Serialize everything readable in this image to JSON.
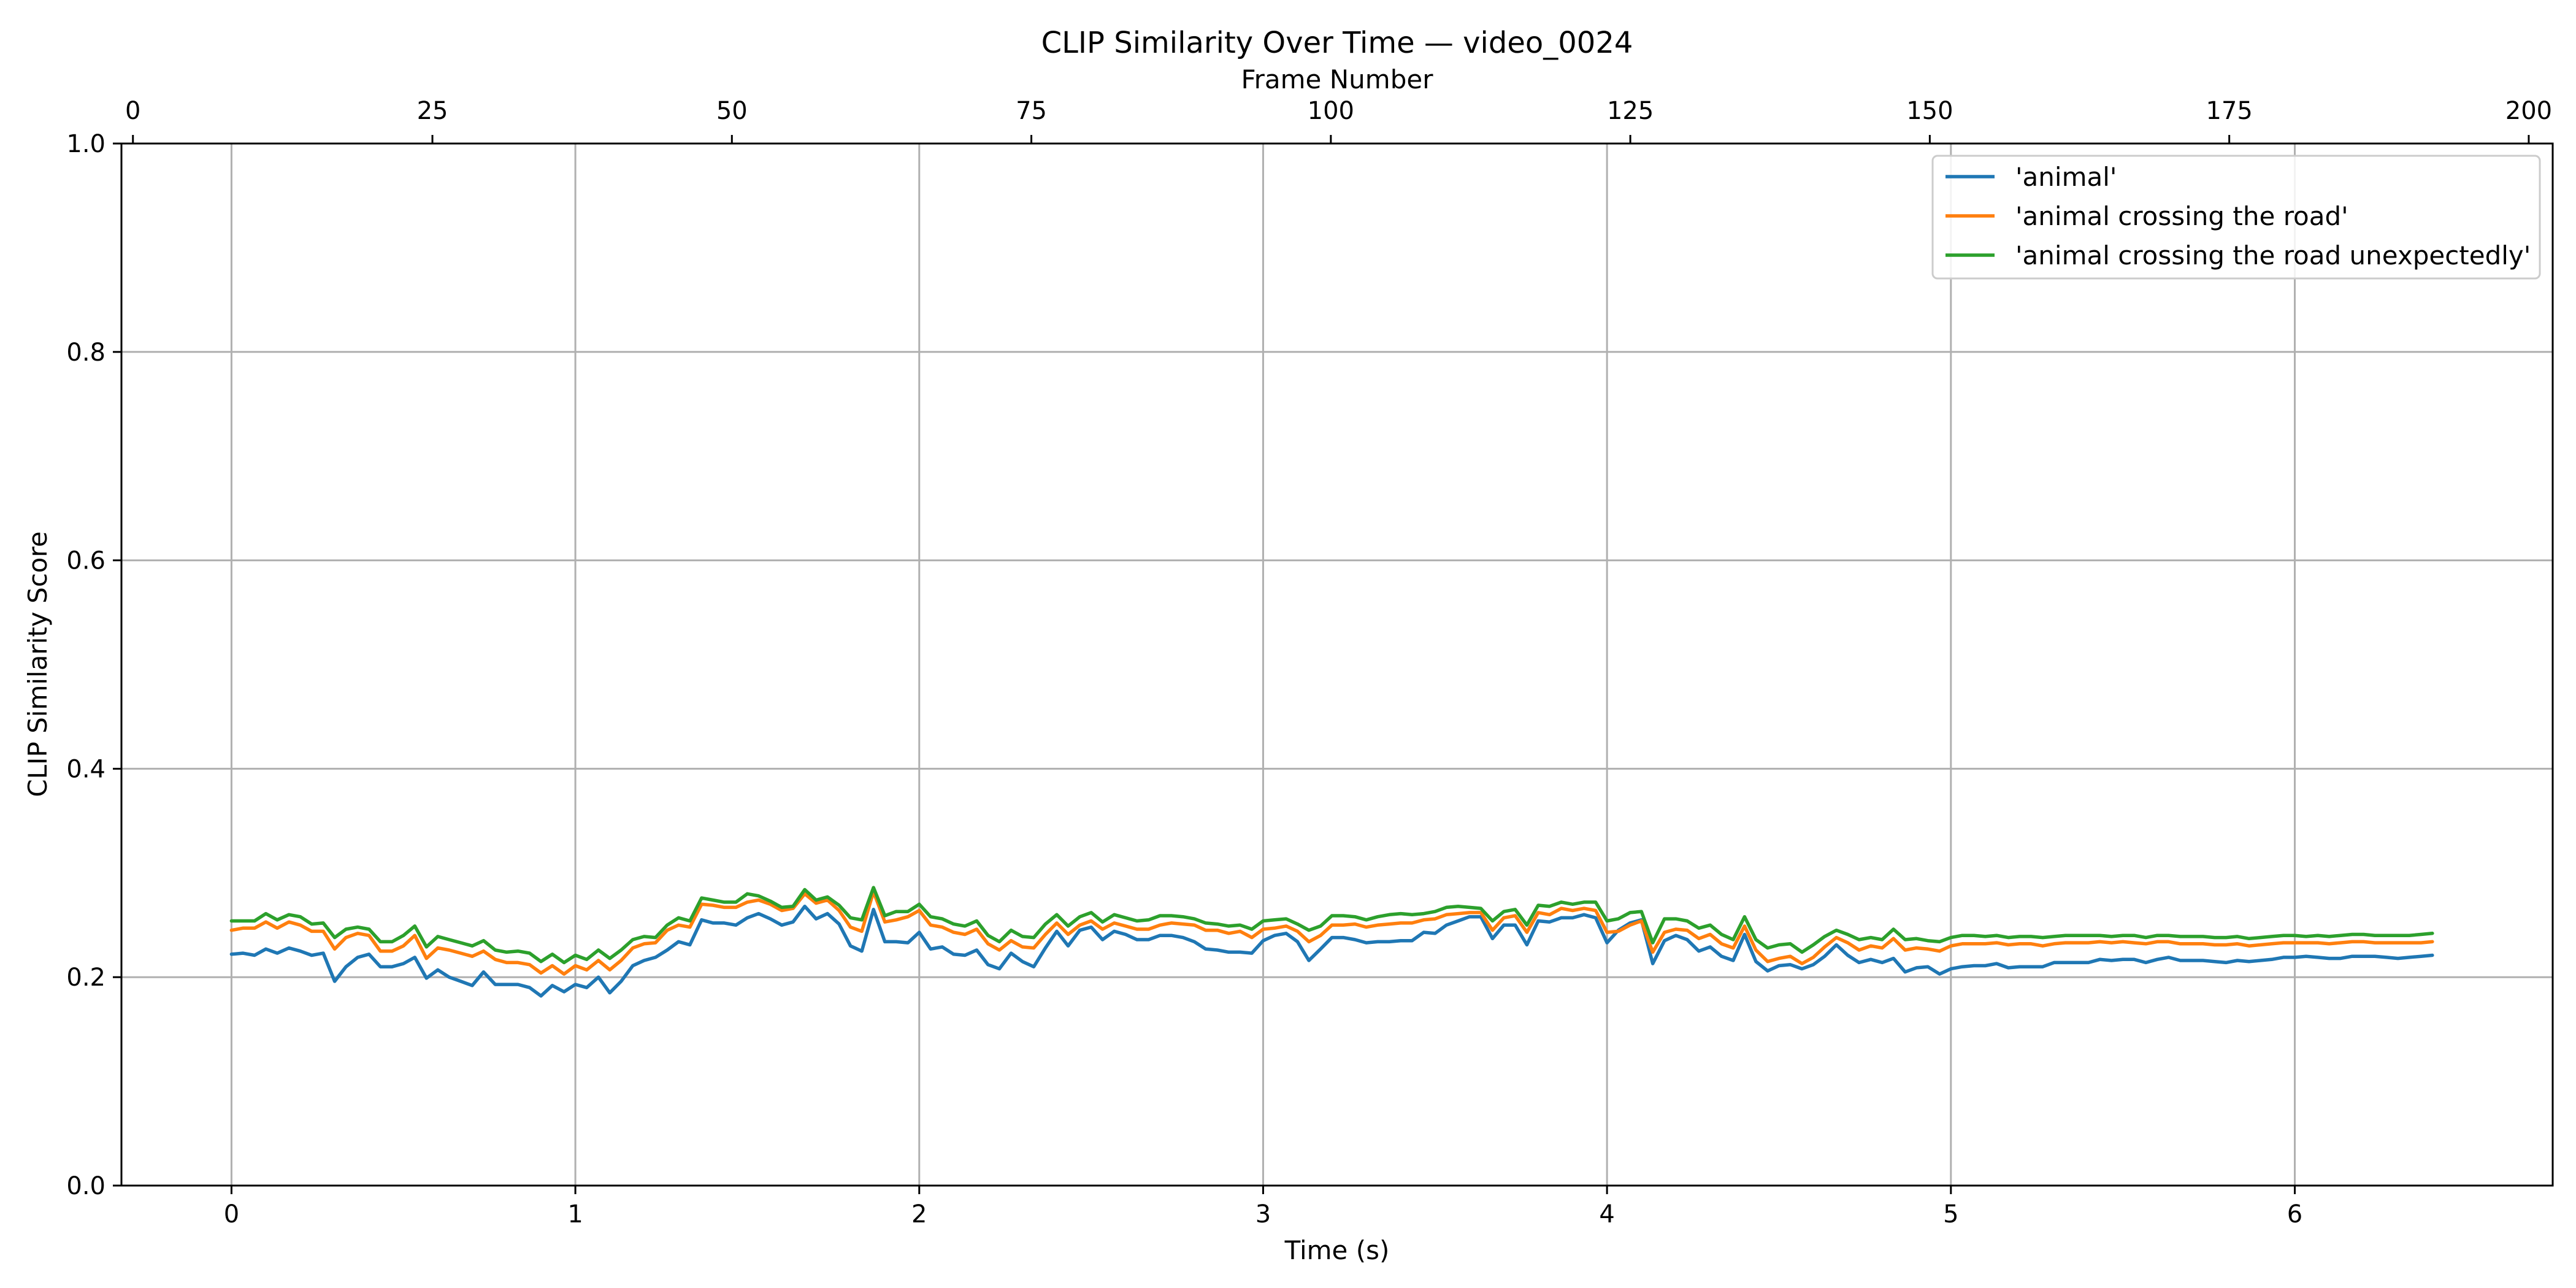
{
  "chart_data": {
    "type": "line",
    "title": "CLIP Similarity Over Time — video_0024",
    "xlabel": "Time (s)",
    "ylabel": "CLIP Similarity Score",
    "x2label": "Frame Number",
    "xlim": [
      -0.32,
      6.75
    ],
    "ylim": [
      0.0,
      1.0
    ],
    "x2lim": [
      -0.96,
      202.0
    ],
    "x_ticks": [
      0,
      1,
      2,
      3,
      4,
      5,
      6
    ],
    "y_ticks": [
      0.0,
      0.2,
      0.4,
      0.6,
      0.8,
      1.0
    ],
    "x2_ticks": [
      0,
      25,
      50,
      75,
      100,
      125,
      150,
      175,
      200
    ],
    "grid": true,
    "legend_position": "upper-right",
    "colors": {
      "animal": "#1f77b4",
      "crossing": "#ff7f0e",
      "unexpectedly": "#2ca02c"
    },
    "x": [
      0.0,
      0.033,
      0.067,
      0.1,
      0.133,
      0.167,
      0.2,
      0.233,
      0.267,
      0.3,
      0.333,
      0.367,
      0.4,
      0.433,
      0.467,
      0.5,
      0.533,
      0.567,
      0.6,
      0.633,
      0.667,
      0.7,
      0.733,
      0.767,
      0.8,
      0.833,
      0.867,
      0.9,
      0.933,
      0.967,
      1.0,
      1.033,
      1.067,
      1.1,
      1.133,
      1.167,
      1.2,
      1.233,
      1.267,
      1.3,
      1.333,
      1.367,
      1.4,
      1.433,
      1.467,
      1.5,
      1.533,
      1.567,
      1.6,
      1.633,
      1.667,
      1.7,
      1.733,
      1.767,
      1.8,
      1.833,
      1.867,
      1.9,
      1.933,
      1.967,
      2.0,
      2.033,
      2.067,
      2.1,
      2.133,
      2.167,
      2.2,
      2.233,
      2.267,
      2.3,
      2.333,
      2.367,
      2.4,
      2.433,
      2.467,
      2.5,
      2.533,
      2.567,
      2.6,
      2.633,
      2.667,
      2.7,
      2.733,
      2.767,
      2.8,
      2.833,
      2.867,
      2.9,
      2.933,
      2.967,
      3.0,
      3.033,
      3.067,
      3.1,
      3.133,
      3.167,
      3.2,
      3.233,
      3.267,
      3.3,
      3.333,
      3.367,
      3.4,
      3.433,
      3.467,
      3.5,
      3.533,
      3.567,
      3.6,
      3.633,
      3.667,
      3.7,
      3.733,
      3.767,
      3.8,
      3.833,
      3.867,
      3.9,
      3.933,
      3.967,
      4.0,
      4.033,
      4.067,
      4.1,
      4.133,
      4.167,
      4.2,
      4.233,
      4.267,
      4.3,
      4.333,
      4.367,
      4.4,
      4.433,
      4.467,
      4.5,
      4.533,
      4.567,
      4.6,
      4.633,
      4.667,
      4.7,
      4.733,
      4.767,
      4.8,
      4.833,
      4.867,
      4.9,
      4.933,
      4.967,
      5.0,
      5.033,
      5.067,
      5.1,
      5.133,
      5.167,
      5.2,
      5.233,
      5.267,
      5.3,
      5.333,
      5.367,
      5.4,
      5.433,
      5.467,
      5.5,
      5.533,
      5.567,
      5.6,
      5.633,
      5.667,
      5.7,
      5.733,
      5.767,
      5.8,
      5.833,
      5.867,
      5.9,
      5.933,
      5.967,
      6.0,
      6.033,
      6.067,
      6.1,
      6.133,
      6.167,
      6.2,
      6.233,
      6.267,
      6.3,
      6.333,
      6.367,
      6.4
    ],
    "series": [
      {
        "name": "'animal'",
        "values": [
          0.222,
          0.223,
          0.221,
          0.227,
          0.223,
          0.228,
          0.225,
          0.221,
          0.223,
          0.196,
          0.21,
          0.219,
          0.222,
          0.21,
          0.21,
          0.213,
          0.219,
          0.199,
          0.207,
          0.2,
          0.196,
          0.192,
          0.205,
          0.193,
          0.193,
          0.193,
          0.19,
          0.182,
          0.192,
          0.186,
          0.193,
          0.19,
          0.2,
          0.185,
          0.196,
          0.211,
          0.216,
          0.219,
          0.226,
          0.234,
          0.231,
          0.255,
          0.252,
          0.252,
          0.25,
          0.257,
          0.261,
          0.256,
          0.25,
          0.253,
          0.268,
          0.256,
          0.261,
          0.251,
          0.23,
          0.225,
          0.265,
          0.234,
          0.234,
          0.233,
          0.243,
          0.227,
          0.229,
          0.222,
          0.221,
          0.226,
          0.212,
          0.208,
          0.223,
          0.215,
          0.21,
          0.228,
          0.244,
          0.23,
          0.245,
          0.248,
          0.236,
          0.244,
          0.241,
          0.236,
          0.236,
          0.24,
          0.24,
          0.238,
          0.234,
          0.227,
          0.226,
          0.224,
          0.224,
          0.223,
          0.235,
          0.24,
          0.242,
          0.234,
          0.216,
          0.227,
          0.238,
          0.238,
          0.236,
          0.233,
          0.234,
          0.234,
          0.235,
          0.235,
          0.243,
          0.242,
          0.25,
          0.254,
          0.258,
          0.258,
          0.237,
          0.25,
          0.25,
          0.231,
          0.254,
          0.253,
          0.257,
          0.257,
          0.26,
          0.257,
          0.233,
          0.245,
          0.252,
          0.255,
          0.213,
          0.235,
          0.24,
          0.236,
          0.225,
          0.229,
          0.22,
          0.216,
          0.241,
          0.215,
          0.206,
          0.211,
          0.212,
          0.208,
          0.212,
          0.22,
          0.231,
          0.221,
          0.214,
          0.217,
          0.214,
          0.218,
          0.205,
          0.209,
          0.21,
          0.203,
          0.208,
          0.21,
          0.211,
          0.211,
          0.213,
          0.209,
          0.21,
          0.21,
          0.21,
          0.214,
          0.214,
          0.214,
          0.214,
          0.217,
          0.216,
          0.217,
          0.217,
          0.214,
          0.217,
          0.219,
          0.216,
          0.216,
          0.216,
          0.215,
          0.214,
          0.216,
          0.215,
          0.216,
          0.217,
          0.219,
          0.219,
          0.22,
          0.219,
          0.218,
          0.218,
          0.22,
          0.22,
          0.22,
          0.219,
          0.218,
          0.219,
          0.22,
          0.221
        ]
      },
      {
        "name": "'animal crossing the road'",
        "values": [
          0.245,
          0.247,
          0.247,
          0.253,
          0.247,
          0.253,
          0.25,
          0.244,
          0.244,
          0.227,
          0.238,
          0.242,
          0.24,
          0.225,
          0.225,
          0.23,
          0.24,
          0.218,
          0.228,
          0.226,
          0.223,
          0.22,
          0.225,
          0.217,
          0.214,
          0.214,
          0.212,
          0.204,
          0.211,
          0.203,
          0.211,
          0.207,
          0.216,
          0.207,
          0.216,
          0.228,
          0.232,
          0.233,
          0.245,
          0.25,
          0.248,
          0.27,
          0.269,
          0.267,
          0.267,
          0.272,
          0.274,
          0.27,
          0.264,
          0.266,
          0.28,
          0.271,
          0.274,
          0.264,
          0.248,
          0.244,
          0.282,
          0.253,
          0.255,
          0.258,
          0.264,
          0.25,
          0.248,
          0.243,
          0.241,
          0.246,
          0.232,
          0.226,
          0.235,
          0.229,
          0.228,
          0.241,
          0.252,
          0.241,
          0.25,
          0.254,
          0.246,
          0.252,
          0.249,
          0.246,
          0.246,
          0.25,
          0.252,
          0.251,
          0.25,
          0.245,
          0.245,
          0.242,
          0.244,
          0.238,
          0.246,
          0.247,
          0.249,
          0.244,
          0.234,
          0.24,
          0.25,
          0.25,
          0.251,
          0.248,
          0.25,
          0.251,
          0.252,
          0.252,
          0.255,
          0.256,
          0.26,
          0.261,
          0.262,
          0.262,
          0.245,
          0.257,
          0.259,
          0.243,
          0.262,
          0.26,
          0.266,
          0.264,
          0.266,
          0.264,
          0.243,
          0.244,
          0.25,
          0.254,
          0.224,
          0.243,
          0.246,
          0.245,
          0.237,
          0.241,
          0.232,
          0.228,
          0.249,
          0.226,
          0.215,
          0.218,
          0.22,
          0.213,
          0.219,
          0.229,
          0.238,
          0.233,
          0.226,
          0.23,
          0.228,
          0.237,
          0.226,
          0.228,
          0.227,
          0.225,
          0.23,
          0.232,
          0.232,
          0.232,
          0.233,
          0.231,
          0.232,
          0.232,
          0.23,
          0.232,
          0.233,
          0.233,
          0.233,
          0.234,
          0.233,
          0.234,
          0.233,
          0.232,
          0.234,
          0.234,
          0.232,
          0.232,
          0.232,
          0.231,
          0.231,
          0.232,
          0.23,
          0.231,
          0.232,
          0.233,
          0.233,
          0.233,
          0.233,
          0.232,
          0.233,
          0.234,
          0.234,
          0.233,
          0.233,
          0.233,
          0.233,
          0.233,
          0.234
        ]
      },
      {
        "name": "'animal crossing the road unexpectedly'",
        "values": [
          0.254,
          0.254,
          0.254,
          0.261,
          0.255,
          0.26,
          0.258,
          0.251,
          0.252,
          0.238,
          0.246,
          0.248,
          0.246,
          0.234,
          0.234,
          0.24,
          0.249,
          0.229,
          0.239,
          0.236,
          0.233,
          0.23,
          0.235,
          0.226,
          0.224,
          0.225,
          0.223,
          0.215,
          0.222,
          0.214,
          0.221,
          0.217,
          0.226,
          0.218,
          0.226,
          0.236,
          0.239,
          0.238,
          0.25,
          0.257,
          0.254,
          0.276,
          0.274,
          0.272,
          0.272,
          0.28,
          0.278,
          0.273,
          0.267,
          0.268,
          0.284,
          0.274,
          0.277,
          0.269,
          0.257,
          0.255,
          0.286,
          0.259,
          0.263,
          0.263,
          0.27,
          0.258,
          0.256,
          0.251,
          0.249,
          0.254,
          0.24,
          0.234,
          0.245,
          0.239,
          0.238,
          0.251,
          0.26,
          0.249,
          0.258,
          0.262,
          0.253,
          0.26,
          0.257,
          0.254,
          0.255,
          0.259,
          0.259,
          0.258,
          0.256,
          0.252,
          0.251,
          0.249,
          0.25,
          0.246,
          0.254,
          0.255,
          0.256,
          0.251,
          0.245,
          0.249,
          0.259,
          0.259,
          0.258,
          0.255,
          0.258,
          0.26,
          0.261,
          0.26,
          0.261,
          0.263,
          0.267,
          0.268,
          0.267,
          0.266,
          0.254,
          0.263,
          0.265,
          0.25,
          0.269,
          0.268,
          0.272,
          0.27,
          0.272,
          0.272,
          0.254,
          0.256,
          0.262,
          0.263,
          0.233,
          0.256,
          0.256,
          0.254,
          0.247,
          0.25,
          0.241,
          0.236,
          0.258,
          0.236,
          0.228,
          0.231,
          0.232,
          0.224,
          0.231,
          0.239,
          0.245,
          0.241,
          0.236,
          0.238,
          0.236,
          0.246,
          0.236,
          0.237,
          0.235,
          0.234,
          0.238,
          0.24,
          0.24,
          0.239,
          0.24,
          0.238,
          0.239,
          0.239,
          0.238,
          0.239,
          0.24,
          0.24,
          0.24,
          0.24,
          0.239,
          0.24,
          0.24,
          0.238,
          0.24,
          0.24,
          0.239,
          0.239,
          0.239,
          0.238,
          0.238,
          0.239,
          0.237,
          0.238,
          0.239,
          0.24,
          0.24,
          0.239,
          0.24,
          0.239,
          0.24,
          0.241,
          0.241,
          0.24,
          0.24,
          0.24,
          0.24,
          0.241,
          0.242
        ]
      }
    ]
  }
}
